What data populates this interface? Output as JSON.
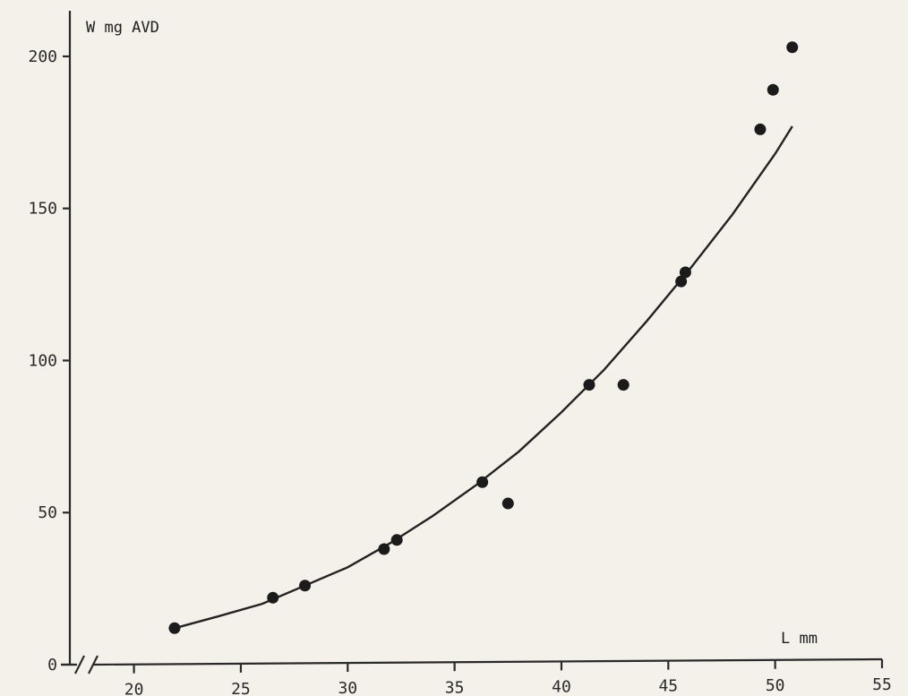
{
  "chart_data": {
    "type": "scatter",
    "ylabel": "W mg AVD",
    "xlabel": "L mm",
    "xlim": [
      17,
      55
    ],
    "ylim": [
      0,
      215
    ],
    "x_ticks": [
      "20",
      "25",
      "30",
      "35",
      "40",
      "45",
      "50",
      "55"
    ],
    "y_ticks": [
      "0",
      "50",
      "100",
      "150",
      "200"
    ],
    "grid": false,
    "axis_break": "x",
    "points": [
      {
        "x": 21.9,
        "y": 12
      },
      {
        "x": 26.5,
        "y": 22
      },
      {
        "x": 28.0,
        "y": 26
      },
      {
        "x": 31.7,
        "y": 38
      },
      {
        "x": 32.3,
        "y": 41
      },
      {
        "x": 36.3,
        "y": 60
      },
      {
        "x": 37.5,
        "y": 53
      },
      {
        "x": 41.3,
        "y": 92
      },
      {
        "x": 42.9,
        "y": 92
      },
      {
        "x": 45.6,
        "y": 126
      },
      {
        "x": 45.8,
        "y": 129
      },
      {
        "x": 49.3,
        "y": 176
      },
      {
        "x": 49.9,
        "y": 189
      },
      {
        "x": 50.8,
        "y": 203
      }
    ],
    "fit_curve": [
      {
        "x": 21.9,
        "y": 12
      },
      {
        "x": 24,
        "y": 16
      },
      {
        "x": 26,
        "y": 20
      },
      {
        "x": 28,
        "y": 26
      },
      {
        "x": 30,
        "y": 32
      },
      {
        "x": 32,
        "y": 40
      },
      {
        "x": 34,
        "y": 49
      },
      {
        "x": 36,
        "y": 59
      },
      {
        "x": 38,
        "y": 70
      },
      {
        "x": 40,
        "y": 83
      },
      {
        "x": 42,
        "y": 97
      },
      {
        "x": 44,
        "y": 113
      },
      {
        "x": 46,
        "y": 130
      },
      {
        "x": 48,
        "y": 148
      },
      {
        "x": 50,
        "y": 168
      },
      {
        "x": 50.8,
        "y": 177
      }
    ]
  }
}
